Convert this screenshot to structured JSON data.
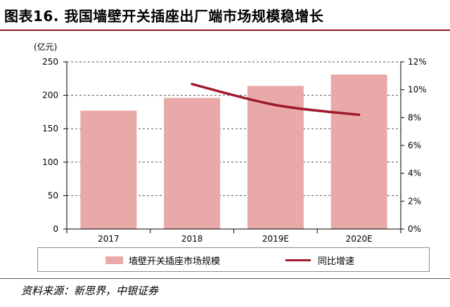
{
  "title": "图表16. 我国墙壁开关插座出厂端市场规模稳增长",
  "unit_label": "(亿元)",
  "source": "资料来源：新思界，中银证券",
  "colors": {
    "bar": "#e8a9a8",
    "line": "#9e1a2c",
    "rule": "#8a1a2b"
  },
  "chart_data": {
    "type": "bar",
    "categories": [
      "2017",
      "2018",
      "2019E",
      "2020E"
    ],
    "series": [
      {
        "name": "墙壁开关插座市场规模",
        "type": "bar",
        "axis": "left",
        "values": [
          177,
          196,
          214,
          231
        ]
      },
      {
        "name": "同比增速",
        "type": "line",
        "axis": "right",
        "values": [
          null,
          10.4,
          8.9,
          8.2
        ]
      }
    ],
    "ylim": [
      0,
      250
    ],
    "yticks": [
      "0",
      "50",
      "100",
      "150",
      "200",
      "250"
    ],
    "y2lim": [
      0,
      12
    ],
    "y2ticks": [
      "0%",
      "2%",
      "4%",
      "6%",
      "8%",
      "10%",
      "12%"
    ],
    "grid": "dashed horizontal",
    "legend": "bottom"
  }
}
